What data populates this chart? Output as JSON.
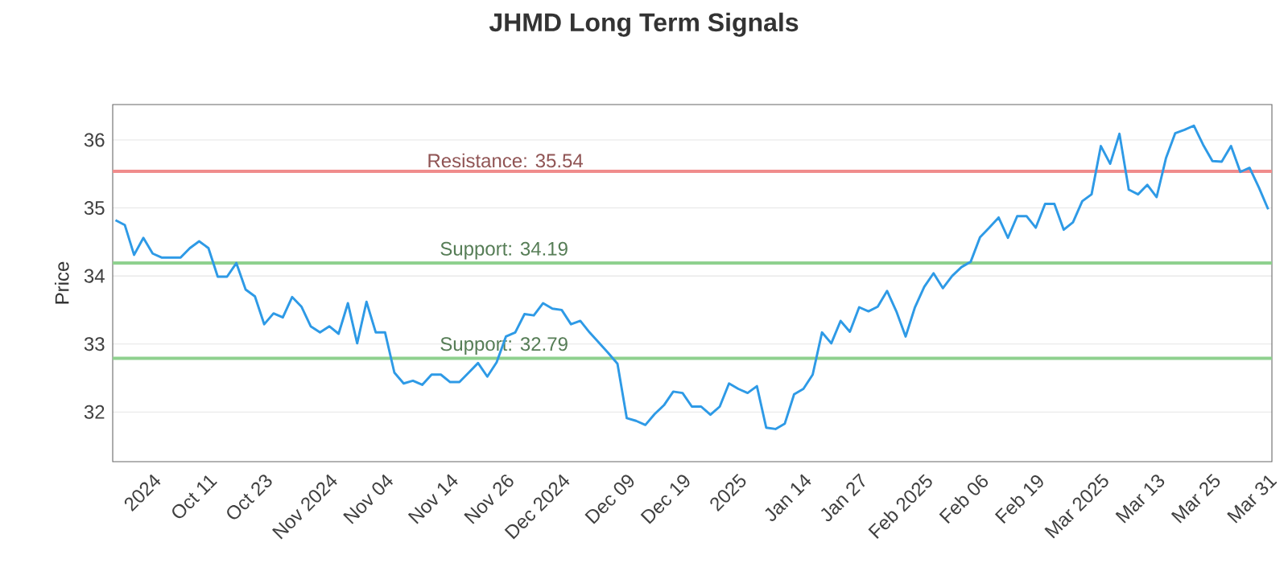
{
  "chart_data": {
    "type": "line",
    "title": "JHMD Long Term Signals",
    "ylabel": "Price",
    "categories": [
      null,
      null,
      null,
      null,
      "2024",
      null,
      null,
      null,
      null,
      null,
      "Oct 11",
      null,
      null,
      null,
      null,
      null,
      "Oct 23",
      null,
      null,
      null,
      null,
      null,
      null,
      "Nov 2024",
      null,
      null,
      null,
      null,
      null,
      "Nov 04",
      null,
      null,
      null,
      null,
      null,
      null,
      "Nov 14",
      null,
      null,
      null,
      null,
      null,
      "Nov 26",
      null,
      null,
      null,
      null,
      null,
      "Dec 2024",
      null,
      null,
      null,
      null,
      null,
      null,
      "Dec 09",
      null,
      null,
      null,
      null,
      null,
      "Dec 19",
      null,
      null,
      null,
      null,
      null,
      "2025",
      null,
      null,
      null,
      null,
      null,
      null,
      "Jan 14",
      null,
      null,
      null,
      null,
      null,
      "Jan 27",
      null,
      null,
      null,
      null,
      null,
      null,
      "Feb 2025",
      null,
      null,
      null,
      null,
      null,
      "Feb 06",
      null,
      null,
      null,
      null,
      null,
      "Feb 19",
      null,
      null,
      null,
      null,
      null,
      null,
      "Mar 2025",
      null,
      null,
      null,
      null,
      null,
      "Mar 13",
      null,
      null,
      null,
      null,
      null,
      "Mar 25",
      null,
      null,
      null,
      null,
      null,
      "Mar 31"
    ],
    "series": [
      {
        "color": "#2e9ae6",
        "values": [
          34.82,
          34.75,
          34.31,
          34.56,
          34.33,
          34.27,
          34.27,
          34.27,
          34.41,
          34.51,
          34.41,
          33.99,
          33.99,
          34.19,
          33.8,
          33.7,
          33.29,
          33.45,
          33.39,
          33.69,
          33.55,
          33.26,
          33.17,
          33.26,
          33.15,
          33.6,
          33.01,
          33.62,
          33.17,
          33.17,
          32.58,
          32.42,
          32.46,
          32.4,
          32.55,
          32.55,
          32.44,
          32.44,
          32.58,
          32.72,
          32.52,
          32.73,
          33.11,
          33.17,
          33.44,
          33.42,
          33.6,
          33.52,
          33.5,
          33.29,
          33.34,
          33.17,
          33.02,
          32.87,
          32.71,
          31.91,
          31.87,
          31.81,
          31.97,
          32.1,
          32.3,
          32.28,
          32.08,
          32.08,
          31.96,
          32.08,
          32.42,
          32.34,
          32.28,
          32.38,
          31.77,
          31.75,
          31.83,
          32.26,
          32.34,
          32.55,
          33.17,
          33.01,
          33.34,
          33.18,
          33.54,
          33.48,
          33.55,
          33.78,
          33.48,
          33.11,
          33.54,
          33.84,
          34.04,
          33.82,
          34.0,
          34.13,
          34.21,
          34.57,
          34.71,
          34.86,
          34.56,
          34.88,
          34.88,
          34.71,
          35.06,
          35.06,
          34.68,
          34.79,
          35.1,
          35.2,
          35.91,
          35.65,
          36.09,
          35.27,
          35.2,
          35.34,
          35.16,
          35.73,
          36.1,
          36.15,
          36.21,
          35.93,
          35.69,
          35.68,
          35.91,
          35.53,
          35.59,
          35.3,
          34.98
        ]
      }
    ],
    "ylim": [
      31.27,
      36.52
    ],
    "yticks": [
      32,
      33,
      34,
      35,
      36
    ],
    "grid": "y",
    "marker": "none",
    "line_style": "solid",
    "ref_lines": [
      {
        "axis": "y",
        "value": 35.54,
        "label": "Resistance: 35.54",
        "color": "#f08c8c"
      },
      {
        "axis": "y",
        "value": 34.19,
        "label": "Support: 34.19",
        "color": "#8fd18f"
      },
      {
        "axis": "y",
        "value": 32.79,
        "label": "Support: 32.79",
        "color": "#8fd18f"
      }
    ]
  }
}
